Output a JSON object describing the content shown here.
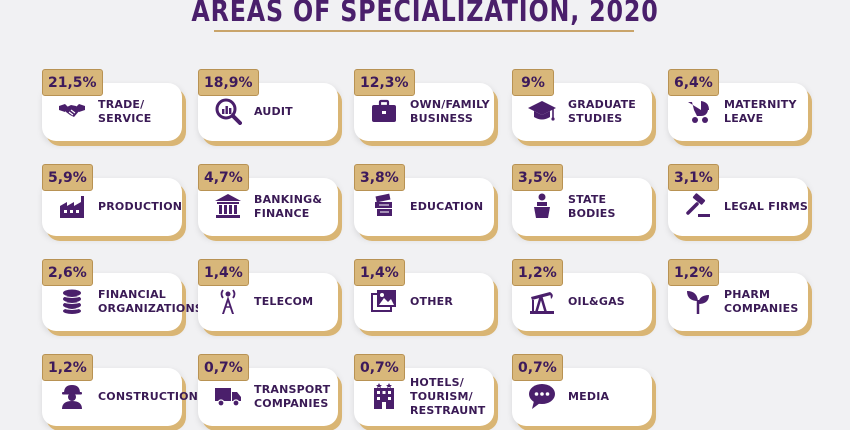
{
  "header": {
    "title": "AREAS OF SPECIALIZATION, 2020"
  },
  "colors": {
    "purple": "#4a1f6b",
    "gold": "#d8b77a",
    "background": "#f1f1f3"
  },
  "items": [
    {
      "percent": "21,5%",
      "label": "TRADE/\nSERVICE",
      "icon": "handshake-icon"
    },
    {
      "percent": "18,9%",
      "label": "AUDIT",
      "icon": "magnifier-chart-icon"
    },
    {
      "percent": "12,3%",
      "label": "OWN/FAMILY\nBUSINESS",
      "icon": "briefcase-icon"
    },
    {
      "percent": "9%",
      "label": "GRADUATE\nSTUDIES",
      "icon": "graduation-cap-icon"
    },
    {
      "percent": "6,4%",
      "label": "MATERNITY\nLEAVE",
      "icon": "stroller-icon"
    },
    {
      "percent": "5,9%",
      "label": "PRODUCTION",
      "icon": "factory-icon"
    },
    {
      "percent": "4,7%",
      "label": "BANKING&\nFINANCE",
      "icon": "bank-icon"
    },
    {
      "percent": "3,8%",
      "label": "EDUCATION",
      "icon": "books-icon"
    },
    {
      "percent": "3,5%",
      "label": "STATE BODIES",
      "icon": "podium-speaker-icon"
    },
    {
      "percent": "3,1%",
      "label": "LEGAL FIRMS",
      "icon": "gavel-icon"
    },
    {
      "percent": "2,6%",
      "label": "FINANCIAL\nORGANIZATIONS",
      "icon": "coin-stack-icon"
    },
    {
      "percent": "1,4%",
      "label": "TELECOM",
      "icon": "antenna-tower-icon"
    },
    {
      "percent": "1,4%",
      "label": "OTHER",
      "icon": "pictures-icon"
    },
    {
      "percent": "1,2%",
      "label": "OIL&GAS",
      "icon": "oil-pump-icon"
    },
    {
      "percent": "1,2%",
      "label": "PHARM\nCOMPANIES",
      "icon": "plant-sprout-icon"
    },
    {
      "percent": "1,2%",
      "label": "CONSTRUCTION",
      "icon": "worker-icon"
    },
    {
      "percent": "0,7%",
      "label": "TRANSPORT\nCOMPANIES",
      "icon": "truck-icon"
    },
    {
      "percent": "0,7%",
      "label": "HOTELS/\nTOURISM/\nRESTRAUNT",
      "icon": "hotel-building-icon"
    },
    {
      "percent": "0,7%",
      "label": "MEDIA",
      "icon": "speech-bubble-icon"
    }
  ]
}
